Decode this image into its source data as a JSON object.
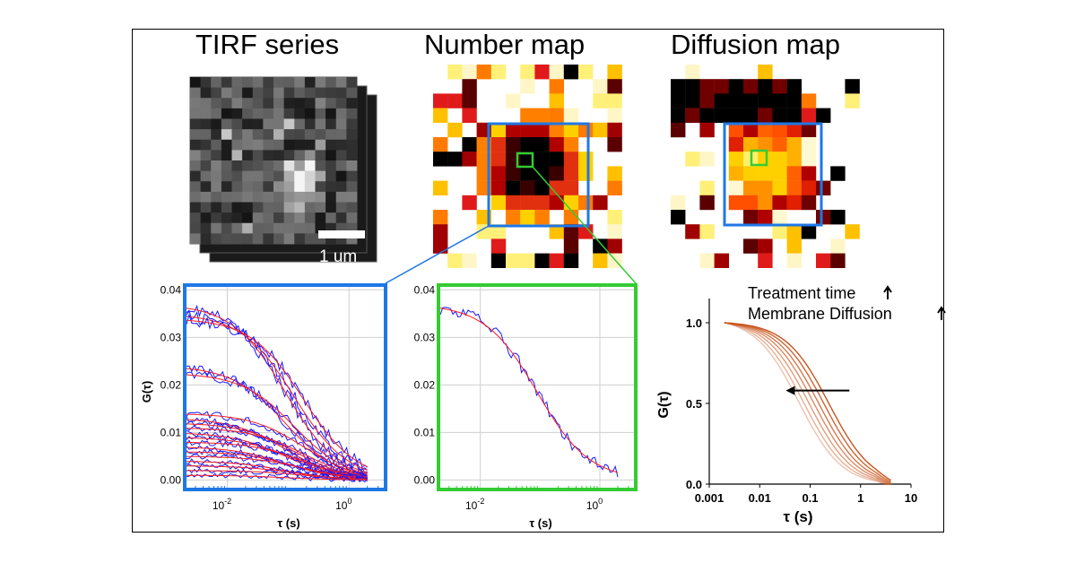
{
  "panels": {
    "tirf": {
      "title": "TIRF series",
      "scalebar_label": "1 um"
    },
    "number_map": {
      "title": "Number map"
    },
    "diffusion_map": {
      "title": "Diffusion map"
    }
  },
  "colors": {
    "blue_roi": "#1f77e6",
    "green_roi": "#33cc33",
    "fit_red": "#ff1a1a",
    "data_blue": "#1a1aff",
    "curve_orange": "#c8541c"
  },
  "chart_data": [
    {
      "type": "line",
      "name": "acf-roi-all-pixels",
      "xscale": "log",
      "xlim": [
        -2.7,
        0.6
      ],
      "ylim": [
        -0.002,
        0.041
      ],
      "xticks": [
        {
          "v": -2,
          "base": "10",
          "exp": "-2"
        },
        {
          "v": 0,
          "base": "10",
          "exp": "0"
        }
      ],
      "yticks": [
        "0.00",
        "0.01",
        "0.02",
        "0.03",
        "0.04"
      ],
      "ytick_values": [
        0.0,
        0.01,
        0.02,
        0.03,
        0.04
      ],
      "xlabel": "τ (s)",
      "ylabel": "G(τ)",
      "series_amplitudes": [
        0.037,
        0.035,
        0.034,
        0.024,
        0.0225,
        0.014,
        0.013,
        0.012,
        0.011,
        0.01,
        0.009,
        0.008,
        0.007,
        0.006,
        0.005,
        0.004,
        0.003,
        0.002,
        0.001
      ]
    },
    {
      "type": "line",
      "name": "acf-single-pixel",
      "xscale": "log",
      "xlim": [
        -2.7,
        0.6
      ],
      "ylim": [
        -0.002,
        0.041
      ],
      "xticks": [
        {
          "v": -2,
          "base": "10",
          "exp": "-2"
        },
        {
          "v": 0,
          "base": "10",
          "exp": "0"
        }
      ],
      "yticks": [
        "0.00",
        "0.01",
        "0.02",
        "0.03",
        "0.04"
      ],
      "ytick_values": [
        0.0,
        0.01,
        0.02,
        0.03,
        0.04
      ],
      "xlabel": "τ (s)",
      "ylabel": "",
      "series_amplitudes": [
        0.037
      ]
    },
    {
      "type": "line",
      "name": "normalized-acf-treatment",
      "xscale": "log",
      "xlim": [
        0.001,
        10
      ],
      "ylim": [
        0,
        1.15
      ],
      "xticks": [
        "0.001",
        "0.01",
        "0.1",
        "1",
        "10"
      ],
      "xtick_values": [
        0.001,
        0.01,
        0.1,
        1,
        10
      ],
      "yticks": [
        "0.0",
        "0.5",
        "1.0"
      ],
      "ytick_values": [
        0.0,
        0.5,
        1.0
      ],
      "xlabel": "τ (s)",
      "ylabel": "G(τ)",
      "annotation_1": "Treatment time",
      "annotation_2": "Membrane Diffusion",
      "half_decay_times": [
        0.06,
        0.075,
        0.095,
        0.12,
        0.15,
        0.19,
        0.24
      ]
    }
  ]
}
